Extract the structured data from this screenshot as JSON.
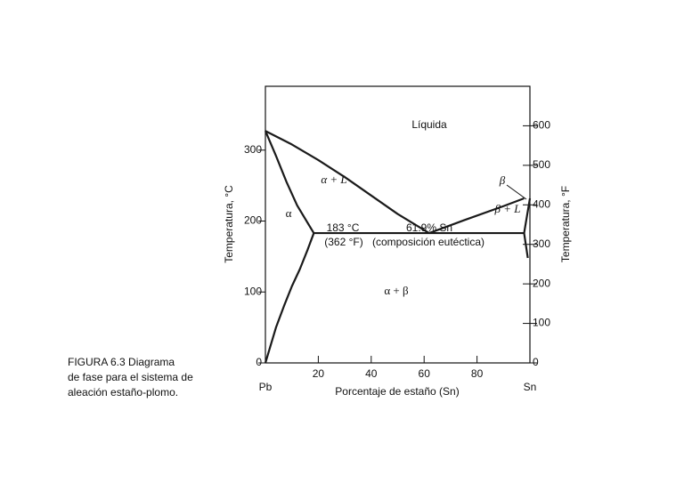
{
  "chart_data": {
    "type": "line",
    "xlabel": "Porcentaje de estaño (Sn)",
    "ylabel": "Temperatura, °C",
    "y2label": "Temperatura, °F",
    "xlim": [
      0,
      100
    ],
    "xticks": [
      {
        "value": 0,
        "label": "Pb"
      },
      20,
      40,
      60,
      80,
      {
        "value": 100,
        "label": "Sn"
      }
    ],
    "ylim": [
      0,
      390
    ],
    "yticks": [
      0,
      100,
      200,
      300
    ],
    "y2lim": [
      0,
      700
    ],
    "y2ticks": [
      0,
      100,
      200,
      300,
      400,
      500,
      600
    ],
    "color": "#1a1a1a",
    "series": [
      {
        "x": [
          0,
          10,
          20,
          30,
          40,
          50,
          61.9
        ],
        "values": [
          327,
          308,
          286,
          262,
          236,
          210,
          183
        ]
      },
      {
        "x": [
          61.9,
          75,
          90,
          97.8
        ],
        "values": [
          183,
          201,
          221,
          232
        ]
      },
      {
        "x": [
          0,
          4,
          8,
          12,
          18.3
        ],
        "values": [
          327,
          292,
          255,
          222,
          183
        ]
      },
      {
        "x": [
          18.3,
          16,
          13,
          10,
          7,
          4,
          2,
          0
        ],
        "values": [
          183,
          160,
          132,
          108,
          80,
          50,
          25,
          0
        ]
      },
      {
        "x": [
          18.3,
          97.8
        ],
        "values": [
          183,
          183
        ]
      },
      {
        "x": [
          100,
          97.8
        ],
        "values": [
          232,
          183
        ]
      },
      {
        "x": [
          97.8,
          99.2
        ],
        "values": [
          183,
          148
        ]
      }
    ],
    "annotations": [
      "Líquida",
      "α + L",
      "α",
      "β",
      "β + L",
      "183 °C",
      "(362 °F)",
      "61.9% Sn",
      "(composición eutéctica)",
      "α + β"
    ],
    "caption": [
      "FIGURA 6.3    Diagrama",
      "de fase para el sistema de",
      "aleación estaño-plomo."
    ]
  }
}
